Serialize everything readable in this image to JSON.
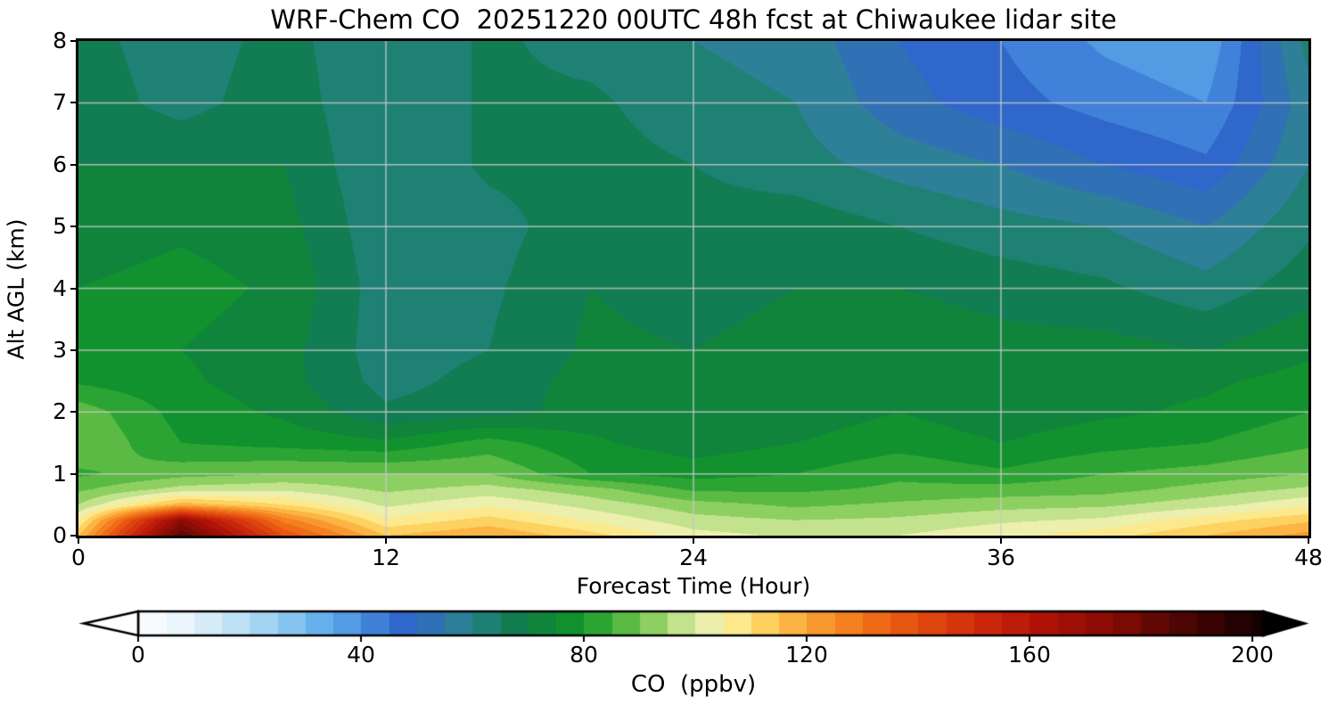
{
  "title": "WRF-Chem CO  20251220 00UTC 48h fcst at Chiwaukee lidar site",
  "axes": {
    "x_label": "Forecast Time (Hour)",
    "y_label": "Alt AGL (km)",
    "x_tick_labels": [
      "0",
      "12",
      "24",
      "36",
      "48"
    ],
    "x_tick_values": [
      0,
      12,
      24,
      36,
      48
    ],
    "y_tick_labels": [
      "0",
      "1",
      "2",
      "3",
      "4",
      "5",
      "6",
      "7",
      "8"
    ],
    "y_tick_values": [
      0,
      1,
      2,
      3,
      4,
      5,
      6,
      7,
      8
    ],
    "x_range": [
      0,
      48
    ],
    "y_range": [
      0,
      8
    ],
    "grid": true,
    "grid_color": "#c8c8c8"
  },
  "colorbar": {
    "label": "CO  (ppbv)",
    "tick_labels": [
      "0",
      "40",
      "80",
      "120",
      "160",
      "200"
    ],
    "tick_values": [
      0,
      40,
      80,
      120,
      160,
      200
    ],
    "range": [
      0,
      202
    ],
    "extend": "both",
    "under_color": "#ffffff",
    "over_color": "#000000"
  },
  "chart_data": {
    "type": "heatmap",
    "title": "WRF-Chem CO  20251220 00UTC 48h fcst at Chiwaukee lidar site",
    "xlabel": "Forecast Time (Hour)",
    "ylabel": "Alt AGL (km)",
    "legend": "filled contour of CO mixing ratio, 5 ppbv bands",
    "x_hours": [
      0,
      4,
      8,
      12,
      16,
      20,
      24,
      28,
      32,
      36,
      40,
      44,
      48
    ],
    "altitudes_km": [
      0,
      0.25,
      0.5,
      0.75,
      1,
      1.5,
      2,
      2.5,
      3,
      4,
      5,
      6,
      7,
      8
    ],
    "co_ppbv": [
      [
        115,
        185,
        140,
        115,
        120,
        112,
        102,
        99,
        100,
        104,
        108,
        115,
        122
      ],
      [
        105,
        172,
        128,
        106,
        112,
        104,
        97,
        95,
        96,
        99,
        101,
        108,
        114
      ],
      [
        95,
        118,
        110,
        99,
        104,
        98,
        92,
        89,
        91,
        93,
        94,
        98,
        104
      ],
      [
        89,
        97,
        99,
        94,
        97,
        92,
        84,
        84,
        86,
        87,
        88,
        92,
        96
      ],
      [
        84,
        88,
        90,
        90,
        90,
        80,
        78,
        80,
        84,
        81,
        85,
        87,
        90
      ],
      [
        90,
        80,
        78,
        76,
        82,
        76,
        72,
        75,
        78,
        75,
        78,
        80,
        84
      ],
      [
        88,
        78,
        74,
        66,
        68,
        72,
        70,
        72,
        75,
        72,
        74,
        76,
        80
      ],
      [
        79,
        76,
        72,
        63,
        67,
        72,
        70,
        72,
        74,
        72,
        73,
        74,
        77
      ],
      [
        76,
        75,
        72,
        62,
        65,
        71,
        70,
        72,
        74,
        72,
        72,
        70,
        74
      ],
      [
        75,
        77,
        74,
        62,
        64,
        70,
        68,
        70,
        70,
        68,
        66,
        62,
        68
      ],
      [
        72,
        74,
        72,
        61,
        63,
        68,
        67,
        68,
        65,
        62,
        60,
        55,
        64
      ],
      [
        70,
        70,
        70,
        60,
        66,
        67,
        65,
        62,
        58,
        55,
        50,
        46,
        60
      ],
      [
        68,
        63,
        68,
        60,
        66,
        66,
        62,
        60,
        52,
        47,
        43,
        40,
        58
      ],
      [
        67,
        62,
        67,
        60,
        66,
        63,
        60,
        58,
        50,
        45,
        39,
        36,
        62
      ]
    ],
    "band_width_ppbv": 5,
    "colormap_stops": [
      [
        0,
        "#ffffff"
      ],
      [
        8,
        "#eaf5fc"
      ],
      [
        16,
        "#c9e6f8"
      ],
      [
        24,
        "#9bd2f3"
      ],
      [
        32,
        "#68b4ec"
      ],
      [
        40,
        "#4a90df"
      ],
      [
        47,
        "#2f66cd"
      ],
      [
        53,
        "#3072b4"
      ],
      [
        58,
        "#2d8194"
      ],
      [
        63,
        "#1d8071"
      ],
      [
        68,
        "#117c4e"
      ],
      [
        73,
        "#108539"
      ],
      [
        79,
        "#12962b"
      ],
      [
        85,
        "#3fae3a"
      ],
      [
        90,
        "#74c64f"
      ],
      [
        95,
        "#a8d873"
      ],
      [
        100,
        "#dcedaa"
      ],
      [
        104,
        "#f7f2ae"
      ],
      [
        108,
        "#fde88a"
      ],
      [
        113,
        "#fdcf5b"
      ],
      [
        119,
        "#fbab3d"
      ],
      [
        126,
        "#f68723"
      ],
      [
        134,
        "#ed6414"
      ],
      [
        143,
        "#dd430e"
      ],
      [
        153,
        "#c9250b"
      ],
      [
        163,
        "#ad1207"
      ],
      [
        175,
        "#850b05"
      ],
      [
        188,
        "#4a0604"
      ],
      [
        200,
        "#1c0202"
      ],
      [
        212,
        "#000000"
      ]
    ]
  }
}
